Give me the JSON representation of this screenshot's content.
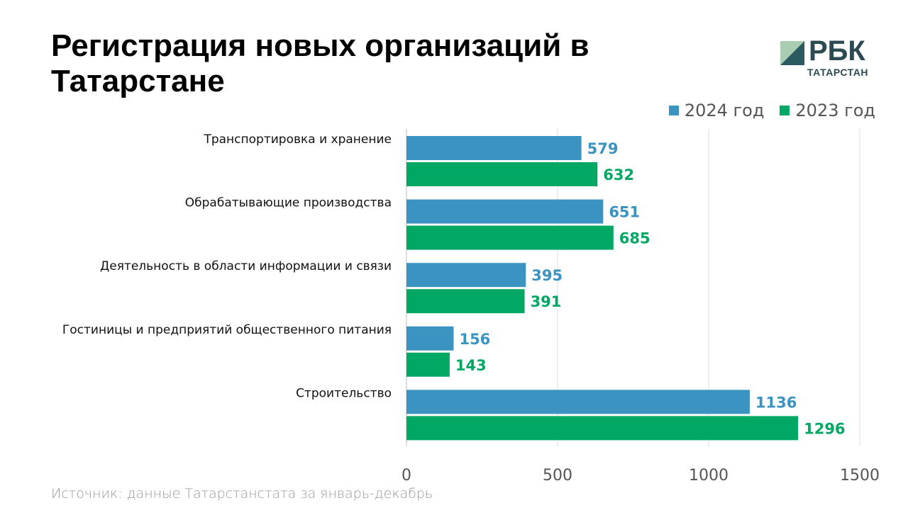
{
  "title": "Регистрация новых организаций в Татарстане",
  "logo": {
    "text": "РБК",
    "sub": "ТАТАРСТАН"
  },
  "source": "Источник: данные Татарстанстата за январь-декабрь",
  "colors": {
    "2024": "#3a93c0",
    "2023": "#00a864"
  },
  "chart_data": {
    "type": "bar",
    "orientation": "horizontal",
    "title": "Регистрация новых организаций в Татарстане",
    "categories": [
      "Транспортировка и хранение",
      "Обрабатывающие производства",
      "Деятельность в области информации и связи",
      "Гостиницы и предприятий общественного питания",
      "Строительство"
    ],
    "series": [
      {
        "name": "2024 год",
        "values": [
          579,
          651,
          395,
          156,
          1136
        ]
      },
      {
        "name": "2023 год",
        "values": [
          632,
          685,
          391,
          143,
          1296
        ]
      }
    ],
    "xlim": [
      0,
      1500
    ],
    "xticks": [
      "0",
      "500",
      "1000",
      "1500"
    ],
    "grid": true,
    "legend": "top-right"
  }
}
